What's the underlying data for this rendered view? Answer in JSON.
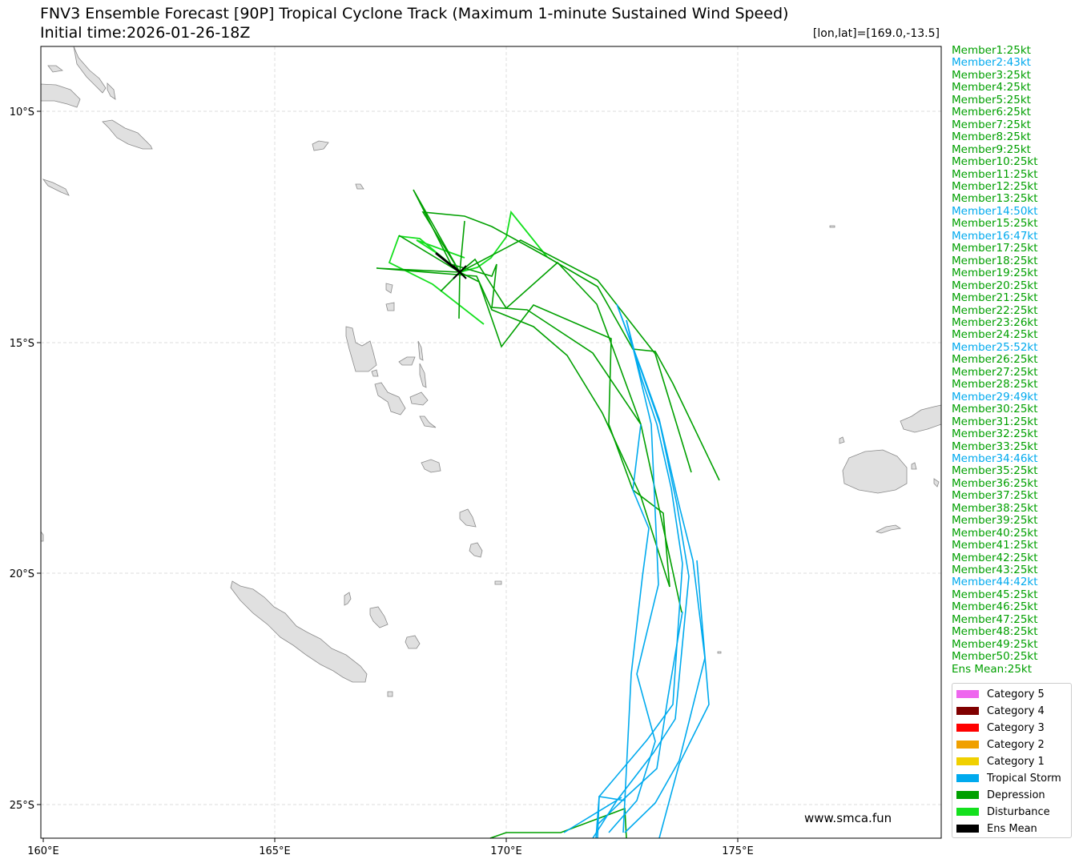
{
  "title_line1": "FNV3 Ensemble Forecast [90P] Tropical Cyclone Track (Maximum 1-minute Sustained Wind Speed)",
  "title_line2": "Initial time:2026-01-26-18Z",
  "coord_label": "[lon,lat]=[169.0,-13.5]",
  "watermark": "www.smca.fun",
  "map": {
    "lon_ticks": [
      "160°E",
      "165°E",
      "170°E",
      "175°E"
    ],
    "lat_ticks": [
      "10°S",
      "15°S",
      "20°S",
      "25°S"
    ]
  },
  "colors": {
    "land": "#e0e0e0",
    "land_edge": "#8a8a8a",
    "grid": "#dddddd",
    "disturbance": "#14e01e",
    "depression": "#00a000",
    "tropical_storm": "#00aaee",
    "ens_mean": "#000000"
  },
  "members": [
    {
      "label": "Member1:25kt",
      "cat": "depression"
    },
    {
      "label": "Member2:43kt",
      "cat": "tropical_storm"
    },
    {
      "label": "Member3:25kt",
      "cat": "depression"
    },
    {
      "label": "Member4:25kt",
      "cat": "depression"
    },
    {
      "label": "Member5:25kt",
      "cat": "depression"
    },
    {
      "label": "Member6:25kt",
      "cat": "depression"
    },
    {
      "label": "Member7:25kt",
      "cat": "depression"
    },
    {
      "label": "Member8:25kt",
      "cat": "depression"
    },
    {
      "label": "Member9:25kt",
      "cat": "depression"
    },
    {
      "label": "Member10:25kt",
      "cat": "depression"
    },
    {
      "label": "Member11:25kt",
      "cat": "depression"
    },
    {
      "label": "Member12:25kt",
      "cat": "depression"
    },
    {
      "label": "Member13:25kt",
      "cat": "depression"
    },
    {
      "label": "Member14:50kt",
      "cat": "tropical_storm"
    },
    {
      "label": "Member15:25kt",
      "cat": "depression"
    },
    {
      "label": "Member16:47kt",
      "cat": "tropical_storm"
    },
    {
      "label": "Member17:25kt",
      "cat": "depression"
    },
    {
      "label": "Member18:25kt",
      "cat": "depression"
    },
    {
      "label": "Member19:25kt",
      "cat": "depression"
    },
    {
      "label": "Member20:25kt",
      "cat": "depression"
    },
    {
      "label": "Member21:25kt",
      "cat": "depression"
    },
    {
      "label": "Member22:25kt",
      "cat": "depression"
    },
    {
      "label": "Member23:26kt",
      "cat": "depression"
    },
    {
      "label": "Member24:25kt",
      "cat": "depression"
    },
    {
      "label": "Member25:52kt",
      "cat": "tropical_storm"
    },
    {
      "label": "Member26:25kt",
      "cat": "depression"
    },
    {
      "label": "Member27:25kt",
      "cat": "depression"
    },
    {
      "label": "Member28:25kt",
      "cat": "depression"
    },
    {
      "label": "Member29:49kt",
      "cat": "tropical_storm"
    },
    {
      "label": "Member30:25kt",
      "cat": "depression"
    },
    {
      "label": "Member31:25kt",
      "cat": "depression"
    },
    {
      "label": "Member32:25kt",
      "cat": "depression"
    },
    {
      "label": "Member33:25kt",
      "cat": "depression"
    },
    {
      "label": "Member34:46kt",
      "cat": "tropical_storm"
    },
    {
      "label": "Member35:25kt",
      "cat": "depression"
    },
    {
      "label": "Member36:25kt",
      "cat": "depression"
    },
    {
      "label": "Member37:25kt",
      "cat": "depression"
    },
    {
      "label": "Member38:25kt",
      "cat": "depression"
    },
    {
      "label": "Member39:25kt",
      "cat": "depression"
    },
    {
      "label": "Member40:25kt",
      "cat": "depression"
    },
    {
      "label": "Member41:25kt",
      "cat": "depression"
    },
    {
      "label": "Member42:25kt",
      "cat": "depression"
    },
    {
      "label": "Member43:25kt",
      "cat": "depression"
    },
    {
      "label": "Member44:42kt",
      "cat": "tropical_storm"
    },
    {
      "label": "Member45:25kt",
      "cat": "depression"
    },
    {
      "label": "Member46:25kt",
      "cat": "depression"
    },
    {
      "label": "Member47:25kt",
      "cat": "depression"
    },
    {
      "label": "Member48:25kt",
      "cat": "depression"
    },
    {
      "label": "Member49:25kt",
      "cat": "depression"
    },
    {
      "label": "Member50:25kt",
      "cat": "depression"
    },
    {
      "label": "Ens Mean:25kt",
      "cat": "depression"
    }
  ],
  "legend": [
    {
      "label": "Category 5",
      "color": "#ee66ee"
    },
    {
      "label": "Category 4",
      "color": "#800000"
    },
    {
      "label": "Category 3",
      "color": "#ff0000"
    },
    {
      "label": "Category 2",
      "color": "#f0a000"
    },
    {
      "label": "Category 1",
      "color": "#f0d000"
    },
    {
      "label": "Tropical Storm",
      "color": "#00aaee"
    },
    {
      "label": "Depression",
      "color": "#00a000"
    },
    {
      "label": "Disturbance",
      "color": "#14e01e"
    },
    {
      "label": "Ens Mean",
      "color": "#000000"
    }
  ]
}
